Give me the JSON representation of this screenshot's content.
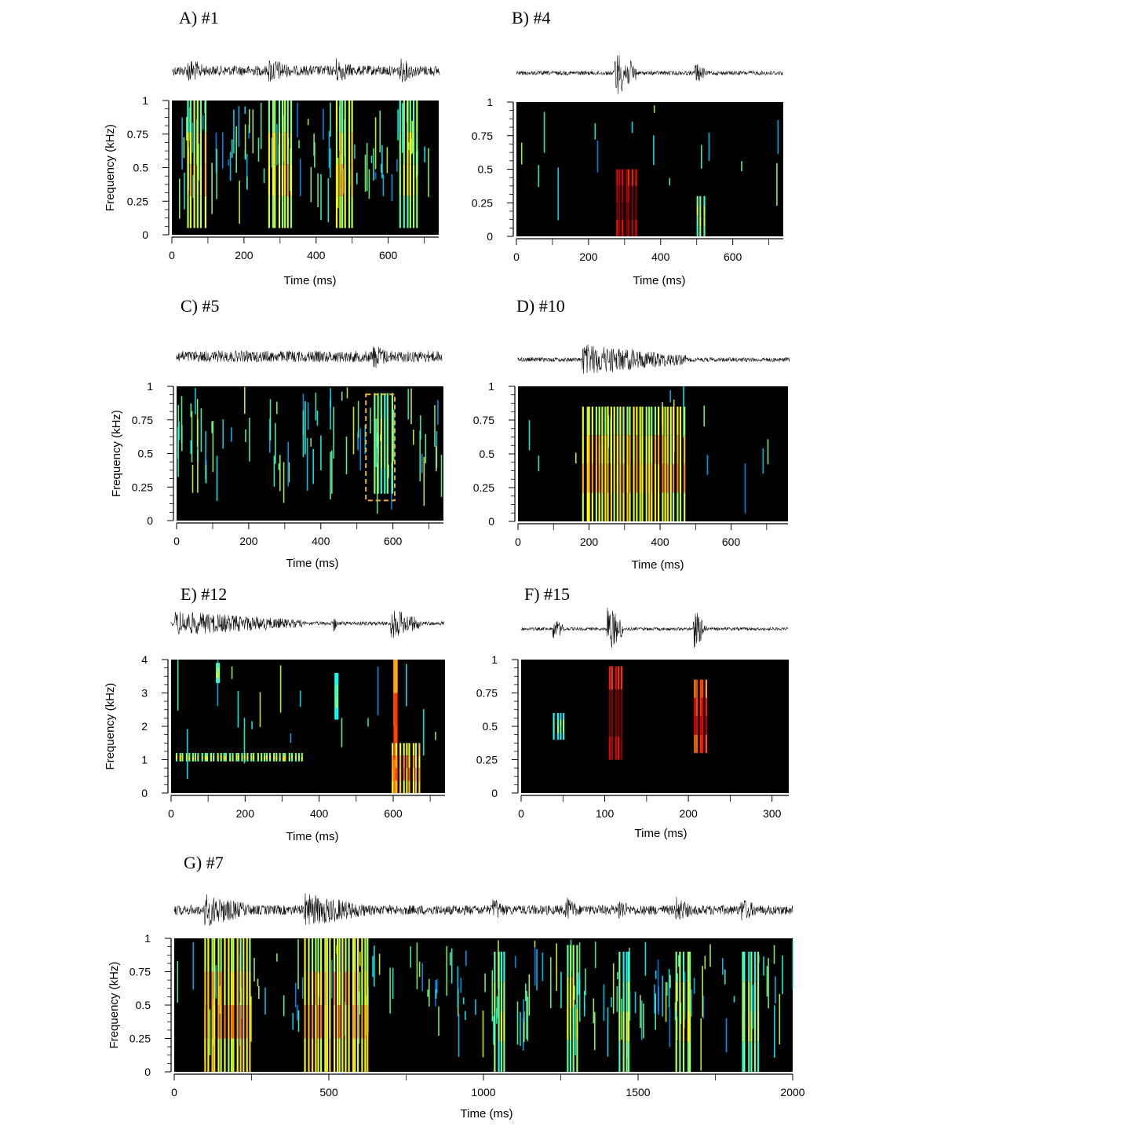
{
  "chart_data": [
    {
      "id": "A",
      "type": "heatmap",
      "title": "A)  #1",
      "xlabel": "Time (ms)",
      "ylabel": "Frequency (kHz)",
      "xlim": [
        0,
        740
      ],
      "ylim": [
        0,
        1
      ],
      "xticks": [
        0,
        200,
        400,
        600
      ],
      "yticks": [
        0,
        0.25,
        0.5,
        0.75,
        1
      ],
      "ytick_labels": [
        "0",
        "0.25",
        "0.5",
        "0.75",
        "1"
      ],
      "events": [
        {
          "t0": 40,
          "t1": 95,
          "f0": 0.05,
          "f1": 1.0,
          "level": 0.6
        },
        {
          "t0": 265,
          "t1": 335,
          "f0": 0.05,
          "f1": 1.0,
          "level": 0.6
        },
        {
          "t0": 450,
          "t1": 505,
          "f0": 0.05,
          "f1": 1.0,
          "level": 0.6
        },
        {
          "t0": 630,
          "t1": 685,
          "f0": 0.05,
          "f1": 1.0,
          "level": 0.55
        }
      ],
      "noise": 0.45
    },
    {
      "id": "B",
      "type": "heatmap",
      "title": "B) #4",
      "xlabel": "Time (ms)",
      "ylabel": "",
      "xlim": [
        0,
        740
      ],
      "ylim": [
        0,
        1
      ],
      "xticks": [
        0,
        200,
        400,
        600
      ],
      "yticks": [
        0,
        0.25,
        0.5,
        0.75,
        1
      ],
      "ytick_labels": [
        "0",
        "0.25",
        "0.5",
        "0.75",
        "1"
      ],
      "events": [
        {
          "t0": 272,
          "t1": 335,
          "f0": 0.0,
          "f1": 0.5,
          "level": 1.0
        },
        {
          "t0": 495,
          "t1": 525,
          "f0": 0.0,
          "f1": 0.3,
          "level": 0.5
        }
      ],
      "noise": 0.08
    },
    {
      "id": "C",
      "type": "heatmap",
      "title": "C) #5",
      "xlabel": "Time (ms)",
      "ylabel": "Frequency (kHz)",
      "xlim": [
        0,
        740
      ],
      "ylim": [
        0,
        1
      ],
      "xticks": [
        0,
        200,
        400,
        600
      ],
      "yticks": [
        0,
        0.25,
        0.5,
        0.75,
        1
      ],
      "ytick_labels": [
        "0",
        "0.25",
        "0.5",
        "0.75",
        "1"
      ],
      "events": [
        {
          "t0": 545,
          "t1": 600,
          "f0": 0.2,
          "f1": 0.95,
          "level": 0.5
        }
      ],
      "highlight_box": {
        "t0": 525,
        "t1": 605,
        "f0": 0.15,
        "f1": 0.94
      },
      "noise": 0.4
    },
    {
      "id": "D",
      "type": "heatmap",
      "title": "D) #10",
      "xlabel": "Time (ms)",
      "ylabel": "",
      "xlim": [
        0,
        760
      ],
      "ylim": [
        0,
        1
      ],
      "xticks": [
        0,
        200,
        400,
        600
      ],
      "yticks": [
        0,
        0.25,
        0.5,
        0.75,
        1
      ],
      "ytick_labels": [
        "0",
        "0.25",
        "0.5",
        "0.75",
        "1"
      ],
      "events": [
        {
          "t0": 180,
          "t1": 470,
          "f0": 0.0,
          "f1": 0.85,
          "level": 0.65
        }
      ],
      "noise": 0.08
    },
    {
      "id": "E",
      "type": "heatmap",
      "title": "E) #12",
      "xlabel": "Time (ms)",
      "ylabel": "Frequency (kHz)",
      "xlim": [
        0,
        740
      ],
      "ylim": [
        0,
        4
      ],
      "xticks": [
        0,
        200,
        400,
        600
      ],
      "yticks": [
        0,
        1,
        2,
        3,
        4
      ],
      "ytick_labels": [
        "0",
        "1",
        "2",
        "3",
        "4"
      ],
      "events": [
        {
          "t0": 10,
          "t1": 355,
          "f0": 0.95,
          "f1": 1.2,
          "level": 0.55
        },
        {
          "t0": 598,
          "t1": 612,
          "f0": 0.0,
          "f1": 4.0,
          "level": 0.8
        },
        {
          "t0": 595,
          "t1": 675,
          "f0": 0.0,
          "f1": 1.5,
          "level": 0.7
        },
        {
          "t0": 120,
          "t1": 130,
          "f0": 3.3,
          "f1": 3.9,
          "level": 0.5
        },
        {
          "t0": 440,
          "t1": 450,
          "f0": 2.2,
          "f1": 3.6,
          "level": 0.45
        }
      ],
      "noise": 0.08
    },
    {
      "id": "F",
      "type": "heatmap",
      "title": "F) #15",
      "xlabel": "Time (ms)",
      "ylabel": "",
      "xlim": [
        0,
        320
      ],
      "ylim": [
        0,
        1
      ],
      "xticks": [
        0,
        100,
        200,
        300
      ],
      "yticks": [
        0,
        0.25,
        0.5,
        0.75,
        1
      ],
      "ytick_labels": [
        "0",
        "0.25",
        "0.5",
        "0.75",
        "1"
      ],
      "events": [
        {
          "t0": 38,
          "t1": 52,
          "f0": 0.4,
          "f1": 0.6,
          "level": 0.45
        },
        {
          "t0": 103,
          "t1": 122,
          "f0": 0.25,
          "f1": 0.95,
          "level": 1.0
        },
        {
          "t0": 205,
          "t1": 222,
          "f0": 0.3,
          "f1": 0.85,
          "level": 0.85
        }
      ],
      "noise": 0.0
    },
    {
      "id": "G",
      "type": "heatmap",
      "title": "G) #7",
      "xlabel": "Time (ms)",
      "ylabel": "Frequency (kHz)",
      "xlim": [
        0,
        2000
      ],
      "ylim": [
        0,
        1
      ],
      "xticks": [
        0,
        500,
        1000,
        1500,
        2000
      ],
      "yticks": [
        0,
        0.25,
        0.5,
        0.75,
        1
      ],
      "ytick_labels": [
        "0",
        "0.25",
        "0.5",
        "0.75",
        "1"
      ],
      "events": [
        {
          "t0": 95,
          "t1": 250,
          "f0": 0.0,
          "f1": 1.0,
          "level": 0.65
        },
        {
          "t0": 420,
          "t1": 630,
          "f0": 0.0,
          "f1": 1.0,
          "level": 0.65
        },
        {
          "t0": 1030,
          "t1": 1075,
          "f0": 0.0,
          "f1": 0.9,
          "level": 0.5
        },
        {
          "t0": 1265,
          "t1": 1310,
          "f0": 0.0,
          "f1": 0.95,
          "level": 0.55
        },
        {
          "t0": 1435,
          "t1": 1475,
          "f0": 0.0,
          "f1": 0.9,
          "level": 0.5
        },
        {
          "t0": 1620,
          "t1": 1675,
          "f0": 0.0,
          "f1": 0.9,
          "level": 0.55
        },
        {
          "t0": 1830,
          "t1": 1890,
          "f0": 0.0,
          "f1": 0.9,
          "level": 0.5
        }
      ],
      "noise": 0.35
    }
  ]
}
